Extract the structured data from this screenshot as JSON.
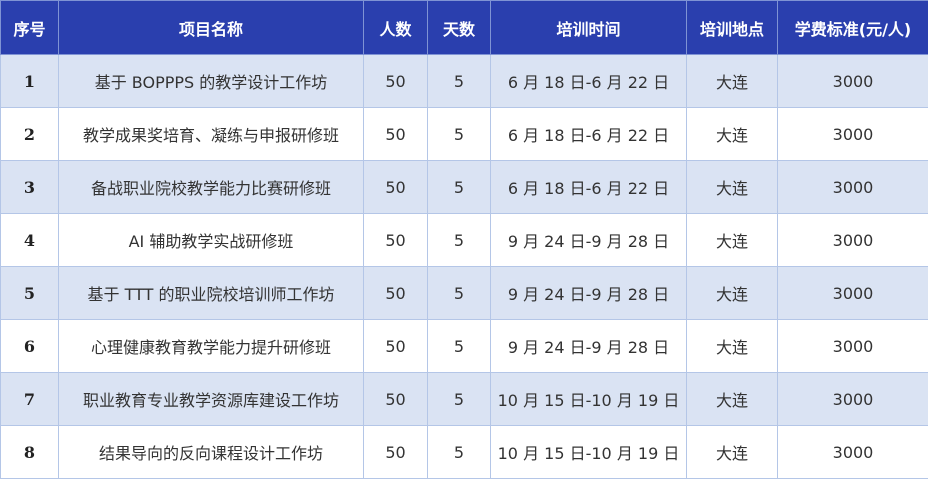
{
  "header_color": "#2a3fae",
  "alt_row_color": "#dae3f3",
  "headers": [
    "序号",
    "项目名称",
    "人数",
    "天数",
    "培训时间",
    "培训地点",
    "学费标准(元/人)"
  ],
  "rows": [
    [
      "1",
      "基于 BOPPPS 的教学设计工作坊",
      "50",
      "5",
      "6 月 18 日-6 月 22 日",
      "大连",
      "3000"
    ],
    [
      "2",
      "教学成果奖培育、凝练与申报研修班",
      "50",
      "5",
      "6 月 18 日-6 月 22 日",
      "大连",
      "3000"
    ],
    [
      "3",
      "备战职业院校教学能力比赛研修班",
      "50",
      "5",
      "6 月 18 日-6 月 22 日",
      "大连",
      "3000"
    ],
    [
      "4",
      "AI 辅助教学实战研修班",
      "50",
      "5",
      "9 月 24 日-9 月 28 日",
      "大连",
      "3000"
    ],
    [
      "5",
      "基于 TTT 的职业院校培训师工作坊",
      "50",
      "5",
      "9 月 24 日-9 月 28 日",
      "大连",
      "3000"
    ],
    [
      "6",
      "心理健康教育教学能力提升研修班",
      "50",
      "5",
      "9 月 24 日-9 月 28 日",
      "大连",
      "3000"
    ],
    [
      "7",
      "职业教育专业教学资源库建设工作坊",
      "50",
      "5",
      "10 月 15 日-10 月 19 日",
      "大连",
      "3000"
    ],
    [
      "8",
      "结果导向的反向课程设计工作坊",
      "50",
      "5",
      "10 月 15 日-10 月 19 日",
      "大连",
      "3000"
    ]
  ]
}
